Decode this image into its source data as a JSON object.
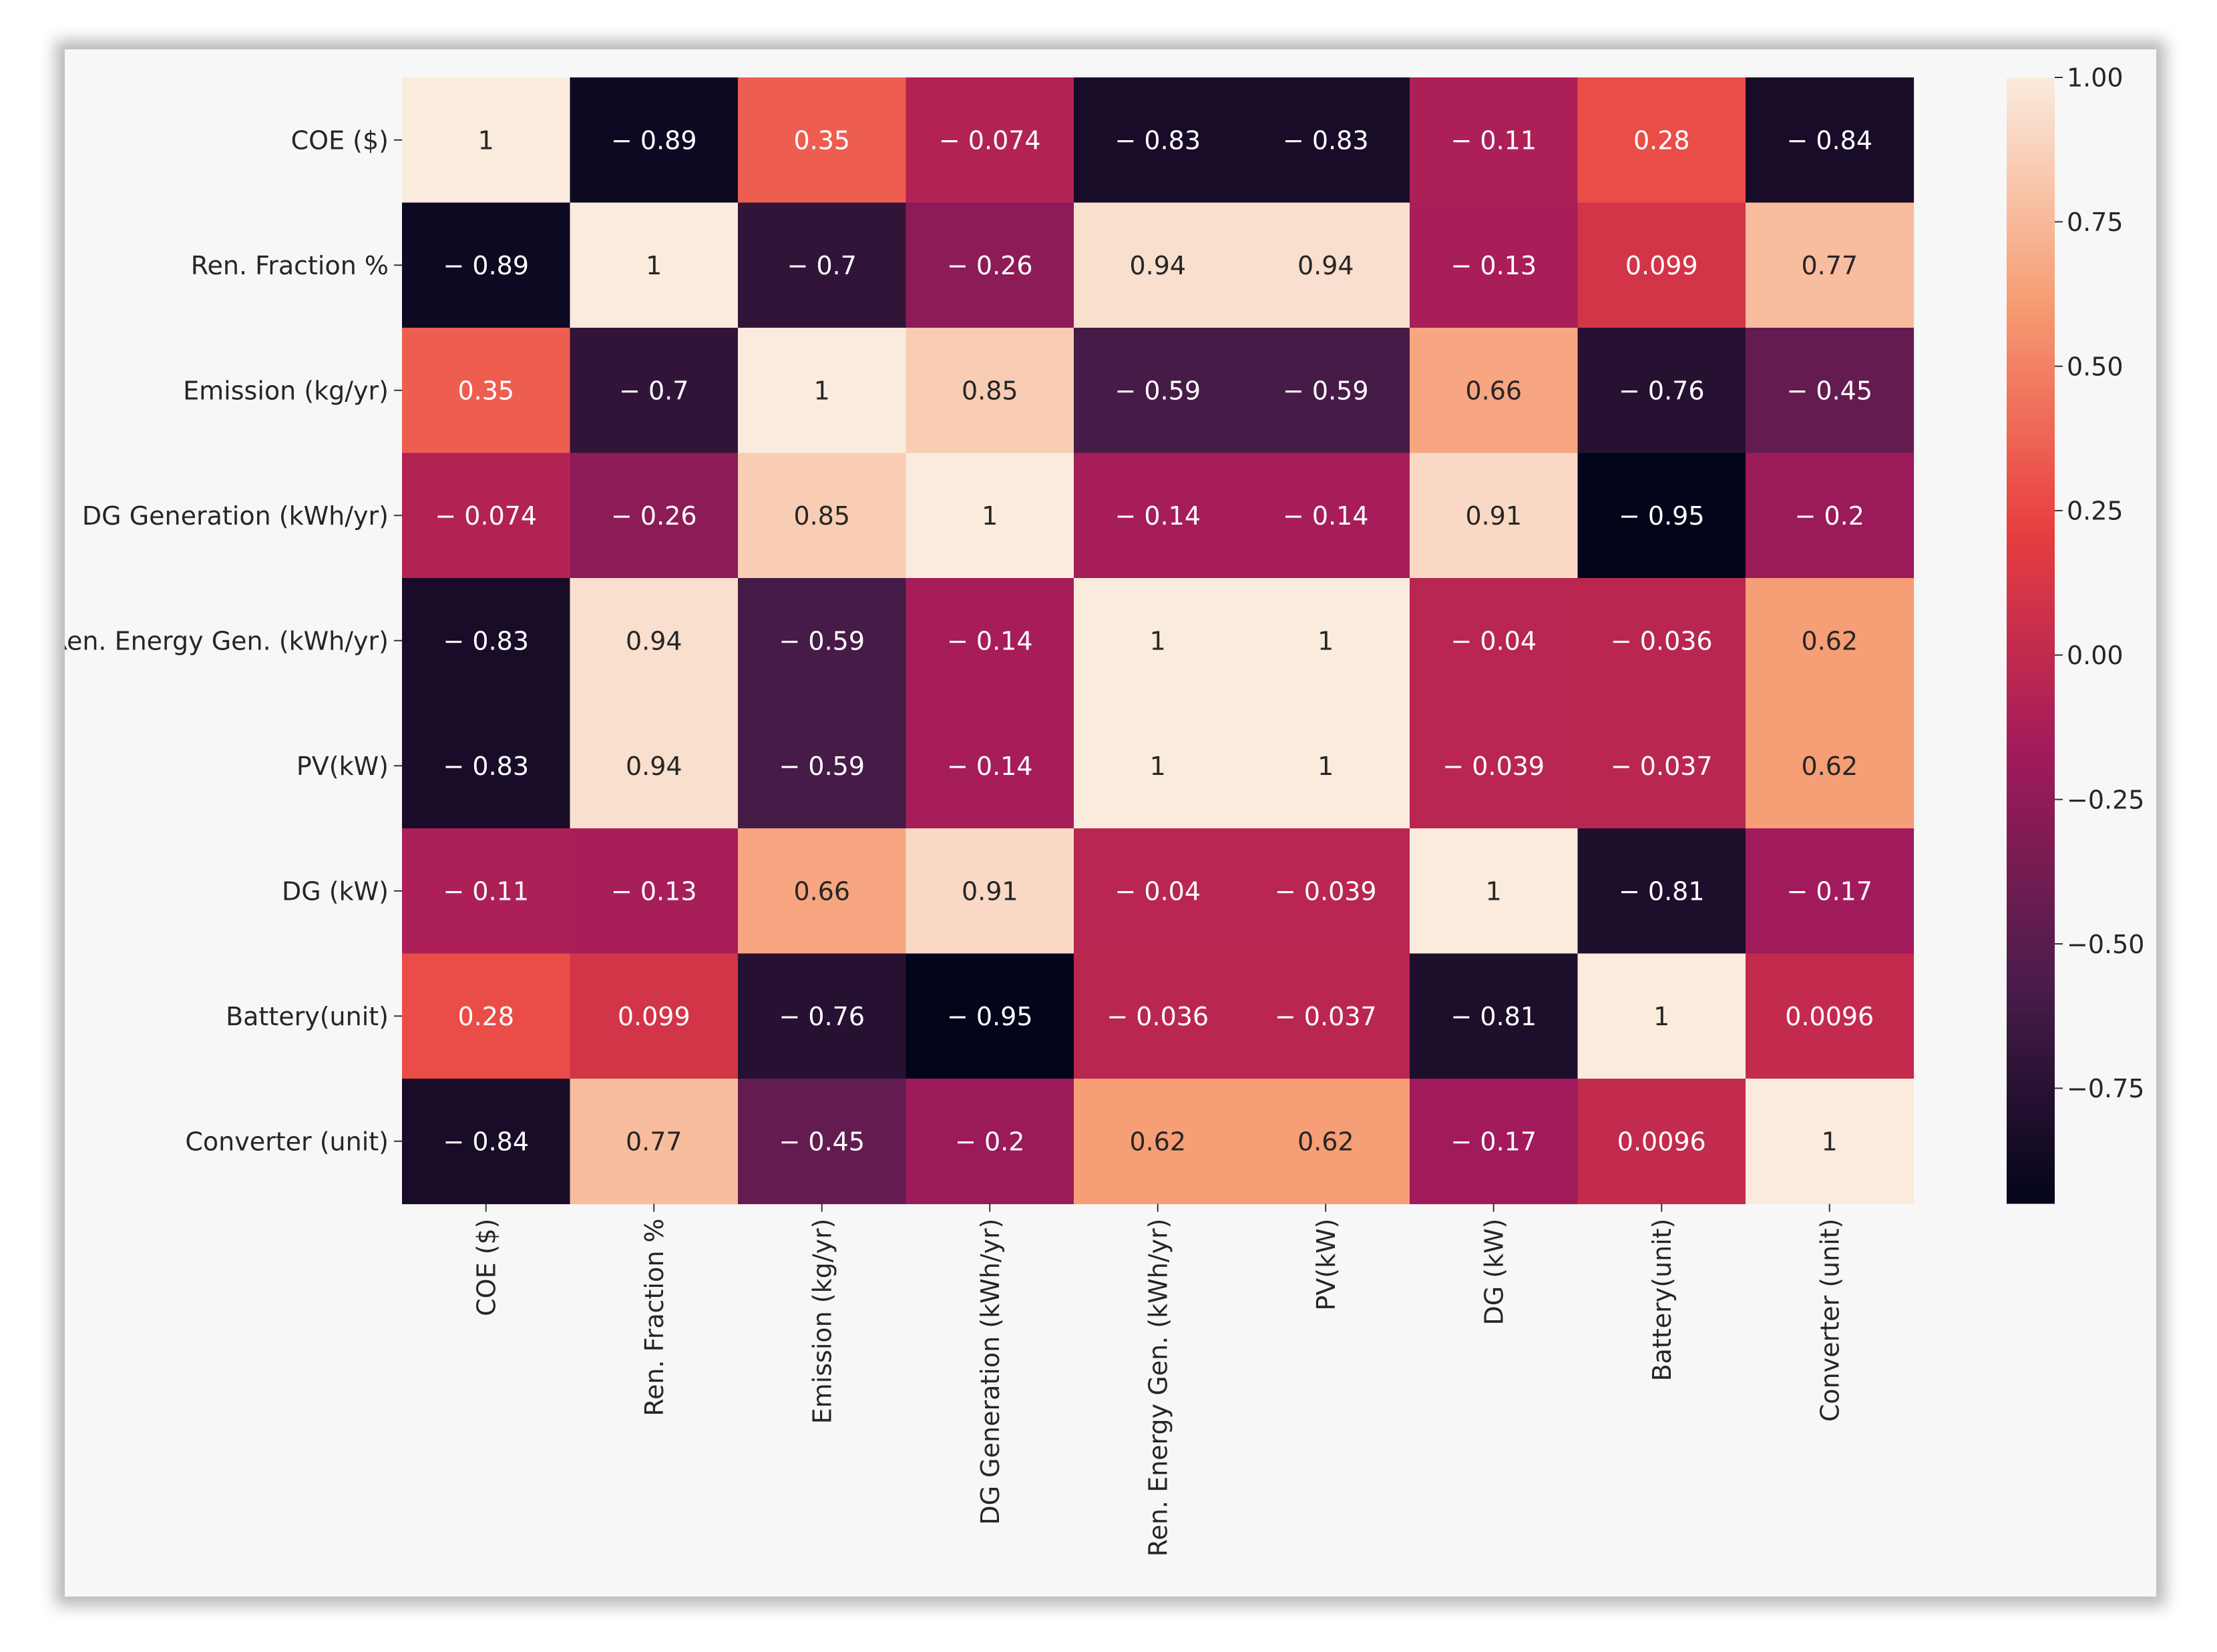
{
  "chart_data": {
    "type": "heatmap",
    "title": "",
    "xlabel": "",
    "ylabel": "",
    "rows": [
      "COE ($)",
      "Ren. Fraction %",
      "Emission (kg/yr)",
      "DG Generation (kWh/yr)",
      "Ren. Energy Gen. (kWh/yr)",
      "PV(kW)",
      "DG (kW)",
      "Battery(unit)",
      "Converter (unit)"
    ],
    "columns": [
      "COE ($)",
      "Ren. Fraction %",
      "Emission (kg/yr)",
      "DG Generation (kWh/yr)",
      "Ren. Energy Gen. (kWh/yr)",
      "PV(kW)",
      "DG (kW)",
      "Battery(unit)",
      "Converter (unit)"
    ],
    "values": [
      [
        1,
        -0.89,
        0.35,
        -0.074,
        -0.83,
        -0.83,
        -0.11,
        0.28,
        -0.84
      ],
      [
        -0.89,
        1,
        -0.7,
        -0.26,
        0.94,
        0.94,
        -0.13,
        0.099,
        0.77
      ],
      [
        0.35,
        -0.7,
        1,
        0.85,
        -0.59,
        -0.59,
        0.66,
        -0.76,
        -0.45
      ],
      [
        -0.074,
        -0.26,
        0.85,
        1,
        -0.14,
        -0.14,
        0.91,
        -0.95,
        -0.2
      ],
      [
        -0.83,
        0.94,
        -0.59,
        -0.14,
        1,
        1,
        -0.04,
        -0.036,
        0.62
      ],
      [
        -0.83,
        0.94,
        -0.59,
        -0.14,
        1,
        1,
        -0.039,
        -0.037,
        0.62
      ],
      [
        -0.11,
        -0.13,
        0.66,
        0.91,
        -0.04,
        -0.039,
        1,
        -0.81,
        -0.17
      ],
      [
        0.28,
        0.099,
        -0.76,
        -0.95,
        -0.036,
        -0.037,
        -0.81,
        1,
        0.0096
      ],
      [
        -0.84,
        0.77,
        -0.45,
        -0.2,
        0.62,
        0.62,
        -0.17,
        0.0096,
        1
      ]
    ],
    "labels": [
      [
        "1",
        "− 0.89",
        "0.35",
        "− 0.074",
        "− 0.83",
        "− 0.83",
        "− 0.11",
        "0.28",
        "− 0.84"
      ],
      [
        "− 0.89",
        "1",
        "− 0.7",
        "− 0.26",
        "0.94",
        "0.94",
        "− 0.13",
        "0.099",
        "0.77"
      ],
      [
        "0.35",
        "− 0.7",
        "1",
        "0.85",
        "− 0.59",
        "− 0.59",
        "0.66",
        "− 0.76",
        "− 0.45"
      ],
      [
        "− 0.074",
        "− 0.26",
        "0.85",
        "1",
        "− 0.14",
        "− 0.14",
        "0.91",
        "− 0.95",
        "− 0.2"
      ],
      [
        "− 0.83",
        "0.94",
        "− 0.59",
        "− 0.14",
        "1",
        "1",
        "− 0.04",
        "− 0.036",
        "0.62"
      ],
      [
        "− 0.83",
        "0.94",
        "− 0.59",
        "− 0.14",
        "1",
        "1",
        "− 0.039",
        "− 0.037",
        "0.62"
      ],
      [
        "− 0.11",
        "− 0.13",
        "0.66",
        "0.91",
        "− 0.04",
        "− 0.039",
        "1",
        "− 0.81",
        "− 0.17"
      ],
      [
        "0.28",
        "0.099",
        "− 0.76",
        "− 0.95",
        "− 0.036",
        "− 0.037",
        "− 0.81",
        "1",
        "0.0096"
      ],
      [
        "− 0.84",
        "0.77",
        "− 0.45",
        "− 0.2",
        "0.62",
        "0.62",
        "− 0.17",
        "0.0096",
        "1"
      ]
    ],
    "colorbar": {
      "min": -0.95,
      "max": 1.0,
      "ticks": [
        1.0,
        0.75,
        0.5,
        0.25,
        0.0,
        -0.25,
        -0.5,
        -0.75
      ],
      "tick_labels": [
        "1.00",
        "0.75",
        "0.50",
        "0.25",
        "0.00",
        "−0.25",
        "−0.50",
        "−0.75"
      ],
      "colormap": "rocket",
      "stops": [
        "#03051a",
        "#4c1d4b",
        "#a11a5b",
        "#e83f3f",
        "#f69c73",
        "#faebdd"
      ]
    }
  }
}
